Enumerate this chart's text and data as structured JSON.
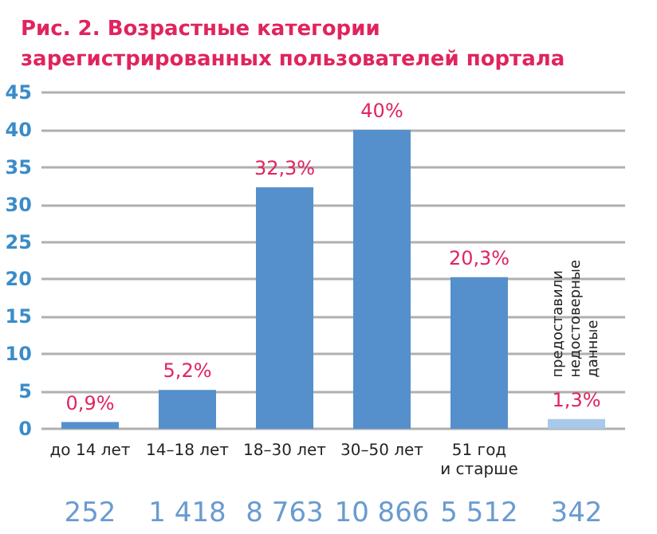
{
  "chart_data": {
    "type": "bar",
    "title": "Рис. 2. Возрастные категории\nзарегистрированных пользователей портала",
    "categories": [
      "до 14 лет",
      "14–18 лет",
      "18–30 лет",
      "30–50 лет",
      "51 год\nи старше",
      "предоставили\nнедостоверные\nданные"
    ],
    "values": [
      0.9,
      5.2,
      32.3,
      40,
      20.3,
      1.3
    ],
    "colors": [
      "#5590cc",
      "#5590cc",
      "#5590cc",
      "#5590cc",
      "#5590cc",
      "#a8c9e9"
    ],
    "value_labels": [
      "0,9%",
      "5,2%",
      "32,3%",
      "40%",
      "20,3%",
      "1,3%"
    ],
    "ylim": [
      0,
      45
    ],
    "yticks": [
      0,
      5,
      10,
      15,
      20,
      25,
      30,
      35,
      40,
      45
    ],
    "grid": "y",
    "annotations": [
      "252",
      "1 418",
      "8 763",
      "10 866",
      "5 512",
      "342"
    ]
  }
}
